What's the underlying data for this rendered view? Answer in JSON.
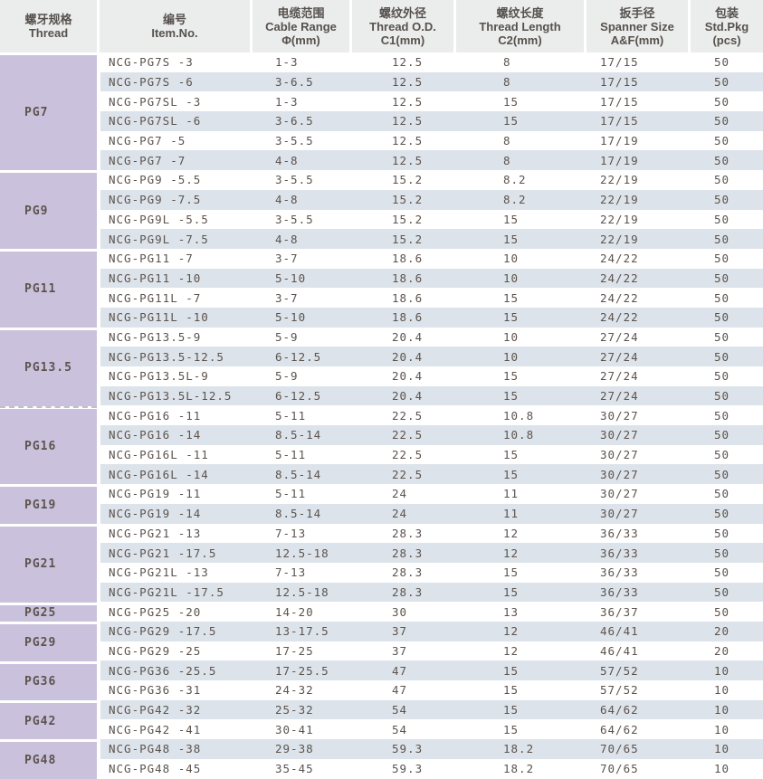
{
  "colors": {
    "header_bg": "#ebecec",
    "header_text": "#56514d",
    "group_purple": "#cac2dd",
    "stripe_blue": "#dce3ea",
    "body_text": "#5d534d"
  },
  "table": {
    "column_keys": [
      "item-no",
      "cable-range",
      "thread-od",
      "thread-length",
      "spanner-size",
      "std-pkg"
    ],
    "columns": [
      {
        "zh": "螺牙规格",
        "en": "Thread",
        "unit": ""
      },
      {
        "zh": "编号",
        "en": "Item.No.",
        "unit": ""
      },
      {
        "zh": "电缆范围",
        "en": "Cable Range",
        "unit": "Φ(mm)"
      },
      {
        "zh": "螺纹外径",
        "en": "Thread O.D.",
        "unit": "C1(mm)"
      },
      {
        "zh": "螺纹长度",
        "en": "Thread Length",
        "unit": "C2(mm)"
      },
      {
        "zh": "扳手径",
        "en": "Spanner Size",
        "unit": "A&F(mm)"
      },
      {
        "zh": "包装",
        "en": "Std.Pkg",
        "unit": "(pcs)"
      }
    ],
    "groups": [
      {
        "thread": "PG7",
        "rows": [
          [
            "NCG-PG7S -3",
            "1-3",
            "12.5",
            "8",
            "17/15",
            "50"
          ],
          [
            "NCG-PG7S -6",
            "3-6.5",
            "12.5",
            "8",
            "17/15",
            "50"
          ],
          [
            "NCG-PG7SL -3",
            "1-3",
            "12.5",
            "15",
            "17/15",
            "50"
          ],
          [
            "NCG-PG7SL -6",
            "3-6.5",
            "12.5",
            "15",
            "17/15",
            "50"
          ],
          [
            "NCG-PG7 -5",
            "3-5.5",
            "12.5",
            "8",
            "17/19",
            "50"
          ],
          [
            "NCG-PG7 -7",
            "4-8",
            "12.5",
            "8",
            "17/19",
            "50"
          ]
        ]
      },
      {
        "thread": "PG9",
        "rows": [
          [
            "NCG-PG9 -5.5",
            "3-5.5",
            "15.2",
            "8.2",
            "22/19",
            "50"
          ],
          [
            "NCG-PG9 -7.5",
            "4-8",
            "15.2",
            "8.2",
            "22/19",
            "50"
          ],
          [
            "NCG-PG9L -5.5",
            "3-5.5",
            "15.2",
            "15",
            "22/19",
            "50"
          ],
          [
            "NCG-PG9L -7.5",
            "4-8",
            "15.2",
            "15",
            "22/19",
            "50"
          ]
        ]
      },
      {
        "thread": "PG11",
        "rows": [
          [
            "NCG-PG11 -7",
            "3-7",
            "18.6",
            "10",
            "24/22",
            "50"
          ],
          [
            "NCG-PG11 -10",
            "5-10",
            "18.6",
            "10",
            "24/22",
            "50"
          ],
          [
            "NCG-PG11L -7",
            "3-7",
            "18.6",
            "15",
            "24/22",
            "50"
          ],
          [
            "NCG-PG11L -10",
            "5-10",
            "18.6",
            "15",
            "24/22",
            "50"
          ]
        ]
      },
      {
        "thread": "PG13.5",
        "rows": [
          [
            "NCG-PG13.5-9",
            "5-9",
            "20.4",
            "10",
            "27/24",
            "50"
          ],
          [
            "NCG-PG13.5-12.5",
            "6-12.5",
            "20.4",
            "10",
            "27/24",
            "50"
          ],
          [
            "NCG-PG13.5L-9",
            "5-9",
            "20.4",
            "15",
            "27/24",
            "50"
          ],
          [
            "NCG-PG13.5L-12.5",
            "6-12.5",
            "20.4",
            "15",
            "27/24",
            "50"
          ]
        ]
      },
      {
        "thread": "PG16",
        "dashed_top": true,
        "rows": [
          [
            "NCG-PG16 -11",
            "5-11",
            "22.5",
            "10.8",
            "30/27",
            "50"
          ],
          [
            "NCG-PG16 -14",
            "8.5-14",
            "22.5",
            "10.8",
            "30/27",
            "50"
          ],
          [
            "NCG-PG16L -11",
            "5-11",
            "22.5",
            "15",
            "30/27",
            "50"
          ],
          [
            "NCG-PG16L -14",
            "8.5-14",
            "22.5",
            "15",
            "30/27",
            "50"
          ]
        ]
      },
      {
        "thread": "PG19",
        "rows": [
          [
            "NCG-PG19 -11",
            "5-11",
            "24",
            "11",
            "30/27",
            "50"
          ],
          [
            "NCG-PG19 -14",
            "8.5-14",
            "24",
            "11",
            "30/27",
            "50"
          ]
        ]
      },
      {
        "thread": "PG21",
        "rows": [
          [
            "NCG-PG21 -13",
            "7-13",
            "28.3",
            "12",
            "36/33",
            "50"
          ],
          [
            "NCG-PG21 -17.5",
            "12.5-18",
            "28.3",
            "12",
            "36/33",
            "50"
          ],
          [
            "NCG-PG21L -13",
            "7-13",
            "28.3",
            "15",
            "36/33",
            "50"
          ],
          [
            "NCG-PG21L -17.5",
            "12.5-18",
            "28.3",
            "15",
            "36/33",
            "50"
          ]
        ]
      },
      {
        "thread": "PG25",
        "rows": [
          [
            "NCG-PG25 -20",
            "14-20",
            "30",
            "13",
            "36/37",
            "50"
          ]
        ]
      },
      {
        "thread": "PG29",
        "rows": [
          [
            "NCG-PG29 -17.5",
            "13-17.5",
            "37",
            "12",
            "46/41",
            "20"
          ],
          [
            "NCG-PG29 -25",
            "17-25",
            "37",
            "12",
            "46/41",
            "20"
          ]
        ]
      },
      {
        "thread": "PG36",
        "rows": [
          [
            "NCG-PG36 -25.5",
            "17-25.5",
            "47",
            "15",
            "57/52",
            "10"
          ],
          [
            "NCG-PG36 -31",
            "24-32",
            "47",
            "15",
            "57/52",
            "10"
          ]
        ]
      },
      {
        "thread": "PG42",
        "rows": [
          [
            "NCG-PG42 -32",
            "25-32",
            "54",
            "15",
            "64/62",
            "10"
          ],
          [
            "NCG-PG42 -41",
            "30-41",
            "54",
            "15",
            "64/62",
            "10"
          ]
        ]
      },
      {
        "thread": "PG48",
        "rows": [
          [
            "NCG-PG48 -38",
            "29-38",
            "59.3",
            "18.2",
            "70/65",
            "10"
          ],
          [
            "NCG-PG48 -45",
            "35-45",
            "59.3",
            "18.2",
            "70/65",
            "10"
          ]
        ]
      }
    ]
  }
}
